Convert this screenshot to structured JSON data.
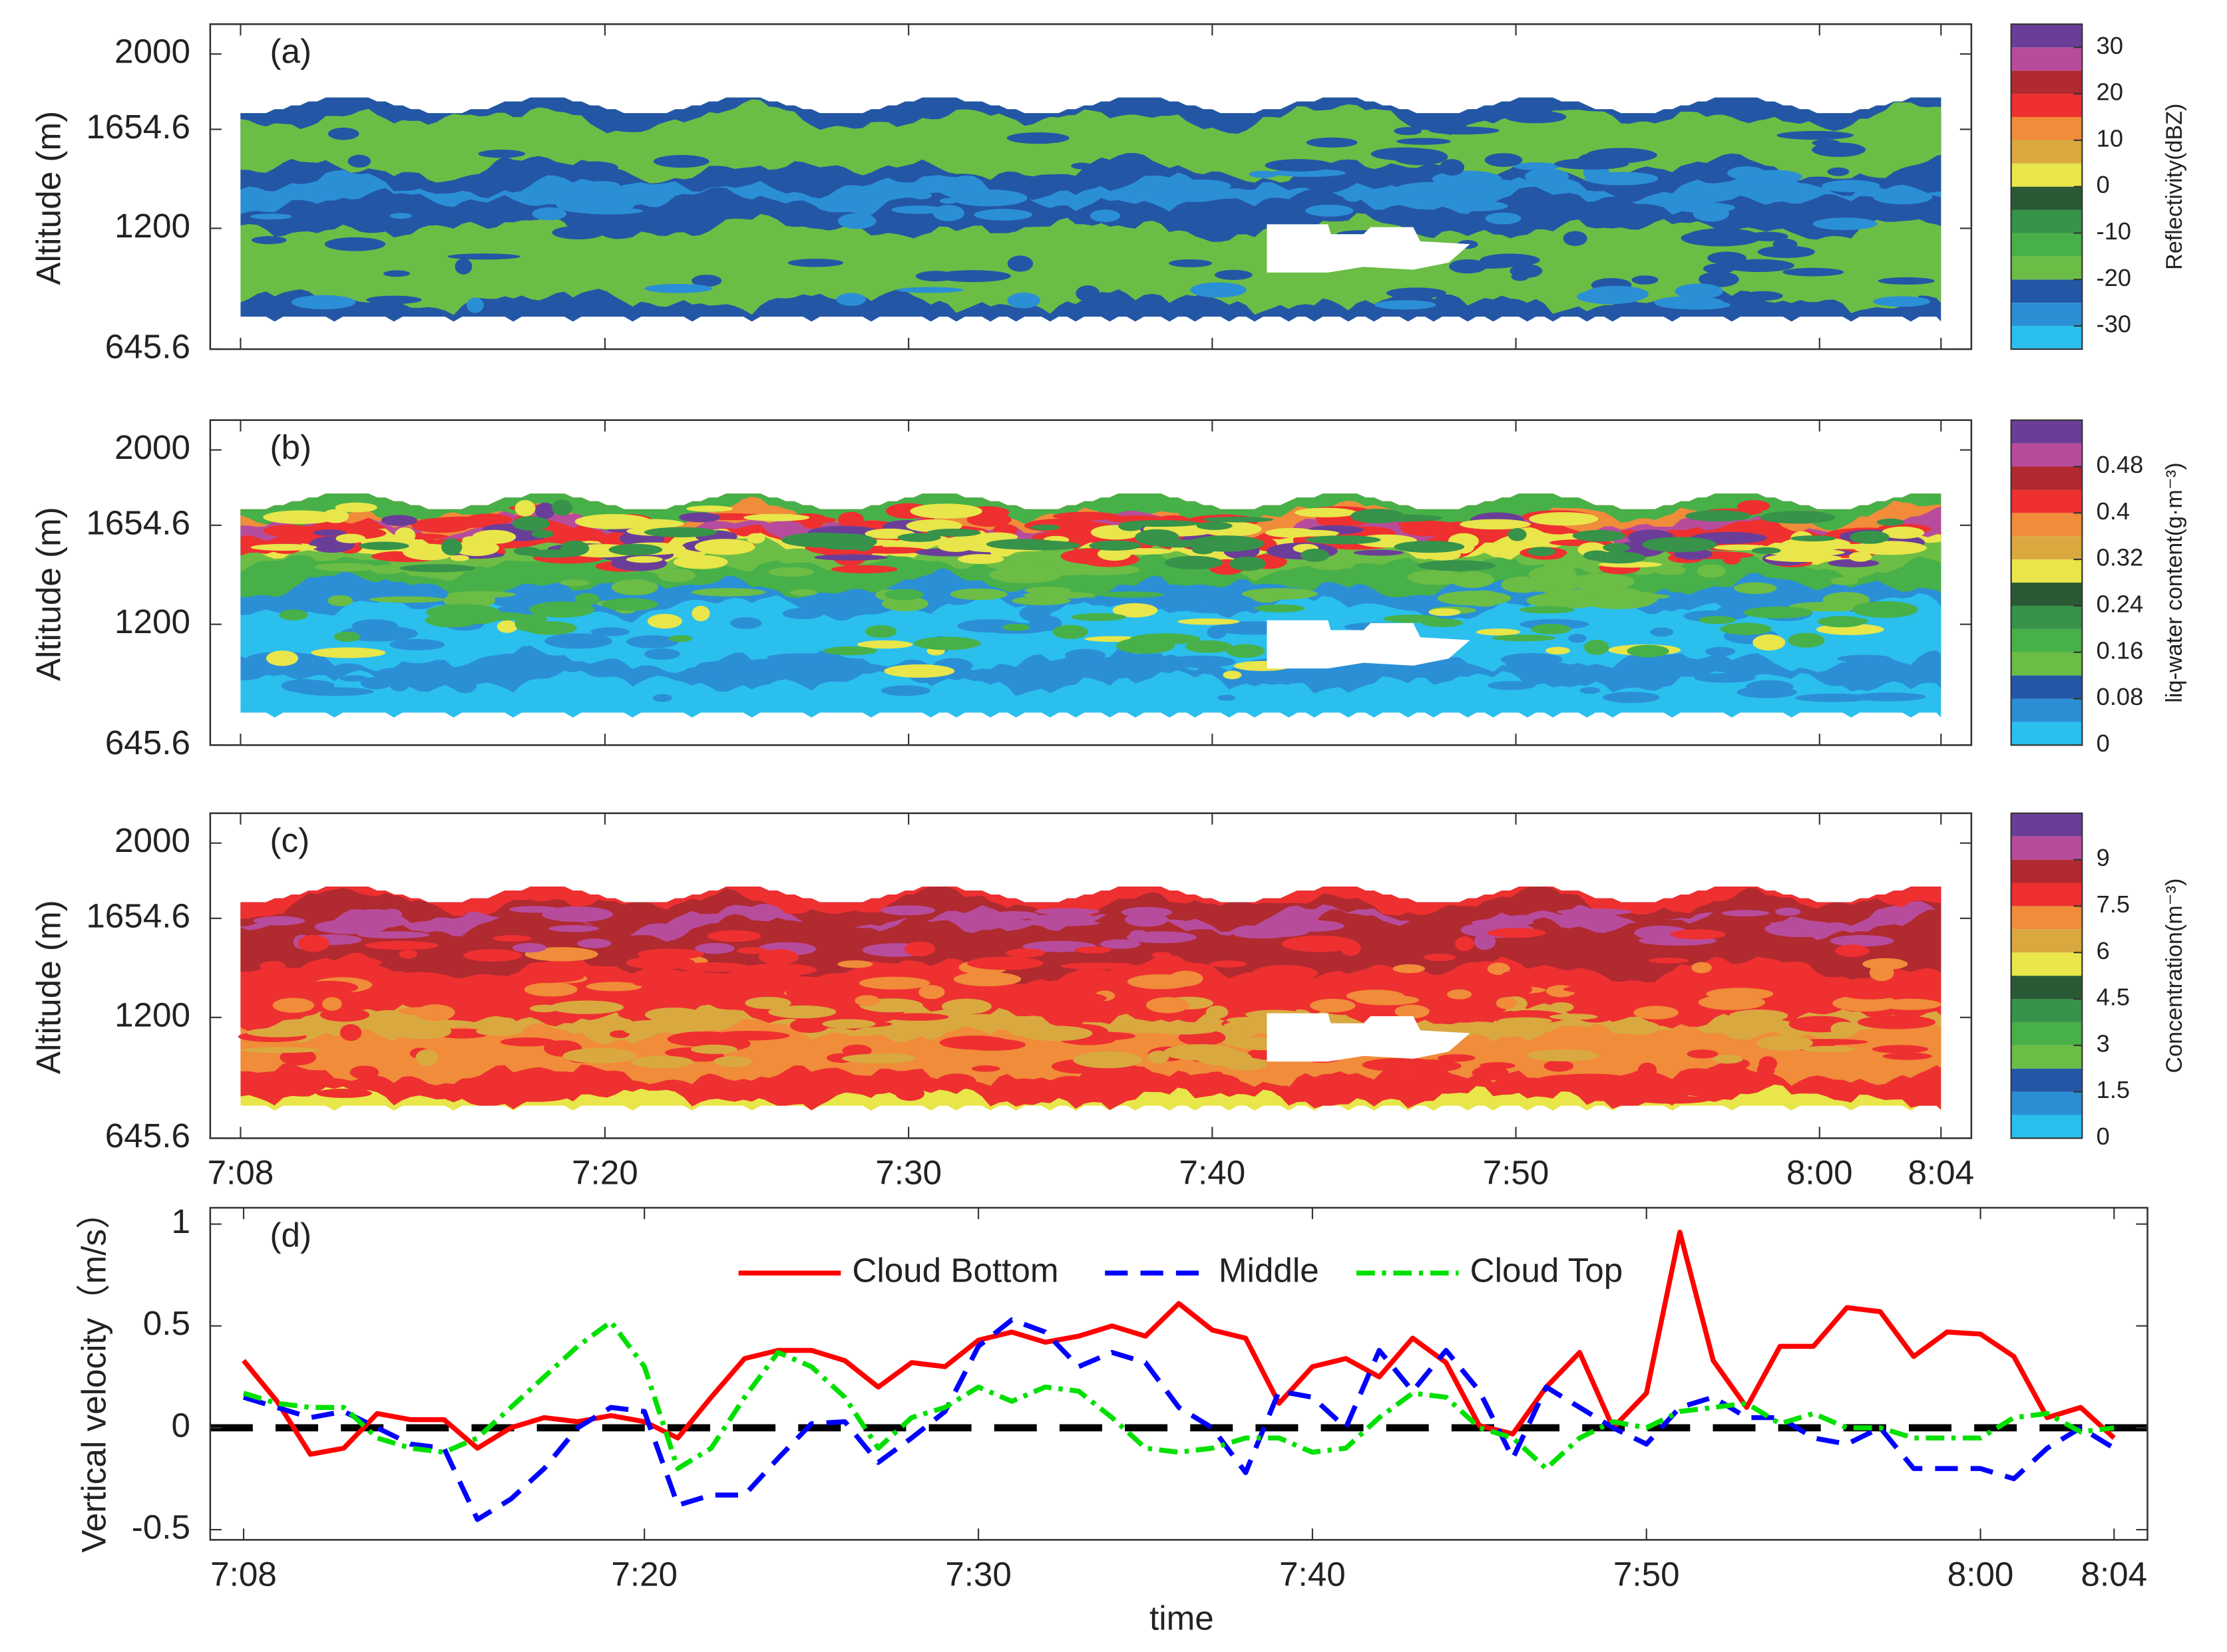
{
  "chart_data": [
    {
      "type": "contour",
      "label": "(a)",
      "ylabel": "Altitude (m)",
      "xlim": [
        "7:07",
        "8:05"
      ],
      "xticks": [
        "7:08",
        "7:20",
        "7:30",
        "7:40",
        "7:50",
        "8:00",
        "8:04"
      ],
      "ylim": [
        645.6,
        2137
      ],
      "yticks": [
        645.6,
        1200,
        1654.6,
        2000
      ],
      "colorbar": {
        "label": "Reflectivity(dBZ)",
        "levels": [
          -35,
          -30,
          -25,
          -20,
          -15,
          -10,
          -5,
          0,
          5,
          10,
          15,
          20,
          25,
          30,
          35
        ],
        "ticks": [
          -30,
          -20,
          -10,
          0,
          10,
          20,
          30
        ],
        "colors": [
          "#2bbfee",
          "#2b8fd6",
          "#2456a6",
          "#6cbd45",
          "#48b048",
          "#37924a",
          "#2a5a35",
          "#e8e64a",
          "#d9a940",
          "#f08c3a",
          "#ee3030",
          "#b02a30",
          "#b84c9c",
          "#6a3e98"
        ]
      }
    },
    {
      "type": "contour",
      "label": "(b)",
      "ylabel": "Altitude (m)",
      "xlim": [
        "7:07",
        "8:05"
      ],
      "xticks": [
        "7:08",
        "7:20",
        "7:30",
        "7:40",
        "7:50",
        "8:00",
        "8:04"
      ],
      "ylim": [
        645.6,
        2137
      ],
      "yticks": [
        645.6,
        1200,
        1654.6,
        2000
      ],
      "colorbar": {
        "label": "liq-water content(g·m⁻³)",
        "levels": [
          0,
          0.04,
          0.08,
          0.12,
          0.16,
          0.2,
          0.24,
          0.28,
          0.32,
          0.36,
          0.4,
          0.44,
          0.48,
          0.52,
          0.56
        ],
        "ticks": [
          0,
          0.08,
          0.16,
          0.24,
          0.32,
          0.4,
          0.48
        ],
        "colors": [
          "#2bbfee",
          "#2b8fd6",
          "#2456a6",
          "#6cbd45",
          "#48b048",
          "#37924a",
          "#2a5a35",
          "#e8e64a",
          "#d9a940",
          "#f08c3a",
          "#ee3030",
          "#b02a30",
          "#b84c9c",
          "#6a3e98"
        ]
      }
    },
    {
      "type": "contour",
      "label": "(c)",
      "ylabel": "Altitude (m)",
      "xlim": [
        "7:07",
        "8:05"
      ],
      "xticks": [
        "7:08",
        "7:20",
        "7:30",
        "7:40",
        "7:50",
        "8:00",
        "8:04"
      ],
      "ylim": [
        645.6,
        2137
      ],
      "yticks": [
        645.6,
        1200,
        1654.6,
        2000
      ],
      "colorbar": {
        "label": "Concentration(m⁻³)",
        "levels": [
          0,
          0.75,
          1.5,
          2.25,
          3,
          3.75,
          4.5,
          5.25,
          6,
          6.75,
          7.5,
          8.25,
          9,
          9.75,
          10.5
        ],
        "ticks": [
          0,
          1.5,
          3,
          4.5,
          6,
          7.5,
          9
        ],
        "colors": [
          "#2bbfee",
          "#2b8fd6",
          "#2456a6",
          "#6cbd45",
          "#48b048",
          "#37924a",
          "#2a5a35",
          "#e8e64a",
          "#d9a940",
          "#f08c3a",
          "#ee3030",
          "#b02a30",
          "#b84c9c",
          "#6a3e98"
        ]
      }
    },
    {
      "type": "line",
      "label": "(d)",
      "ylabel": "Vertical velocity（m/s）",
      "xlabel": "time",
      "xlim": [
        "7:07",
        "8:05"
      ],
      "xticks": [
        "7:08",
        "7:20",
        "7:30",
        "7:40",
        "7:50",
        "8:00",
        "8:04"
      ],
      "ylim": [
        -0.55,
        1.08
      ],
      "yticks": [
        -0.5,
        0,
        0.5,
        1
      ],
      "hline": 0,
      "legend": "upper center",
      "x": [
        "7:08",
        "7:09",
        "7:10",
        "7:11",
        "7:12",
        "7:13",
        "7:14",
        "7:15",
        "7:16",
        "7:17",
        "7:18",
        "7:19",
        "7:20",
        "7:21",
        "7:22",
        "7:23",
        "7:24",
        "7:25",
        "7:26",
        "7:27",
        "7:28",
        "7:29",
        "7:30",
        "7:31",
        "7:32",
        "7:33",
        "7:34",
        "7:35",
        "7:36",
        "7:37",
        "7:38",
        "7:39",
        "7:40",
        "7:41",
        "7:42",
        "7:43",
        "7:44",
        "7:45",
        "7:46",
        "7:47",
        "7:48",
        "7:49",
        "7:50",
        "7:51",
        "7:52",
        "7:53",
        "7:54",
        "7:55",
        "7:56",
        "7:57",
        "7:58",
        "7:59",
        "8:00",
        "8:01",
        "8:02",
        "8:03",
        "8:04"
      ],
      "series": [
        {
          "name": "Cloud Bottom",
          "color": "#ff0000",
          "dash": "solid",
          "values": [
            0.33,
            0.13,
            -0.13,
            -0.1,
            0.07,
            0.04,
            0.04,
            -0.1,
            0.0,
            0.05,
            0.03,
            0.06,
            0.03,
            -0.05,
            0.15,
            0.34,
            0.38,
            0.38,
            0.33,
            0.2,
            0.32,
            0.3,
            0.43,
            0.47,
            0.42,
            0.45,
            0.5,
            0.45,
            0.61,
            0.48,
            0.44,
            0.12,
            0.3,
            0.34,
            0.25,
            0.44,
            0.32,
            0.01,
            -0.03,
            0.2,
            0.37,
            0.0,
            0.17,
            0.96,
            0.33,
            0.1,
            0.4,
            0.4,
            0.59,
            0.57,
            0.35,
            0.47,
            0.46,
            0.35,
            0.05,
            0.1,
            -0.05
          ]
        },
        {
          "name": "Middle",
          "color": "#0000ff",
          "dash": "dash",
          "values": [
            0.15,
            0.1,
            0.05,
            0.08,
            0.0,
            -0.08,
            -0.1,
            -0.45,
            -0.35,
            -0.2,
            0.0,
            0.1,
            0.08,
            -0.38,
            -0.33,
            -0.33,
            -0.15,
            0.02,
            0.03,
            -0.17,
            -0.05,
            0.08,
            0.4,
            0.53,
            0.47,
            0.3,
            0.37,
            0.32,
            0.1,
            0.0,
            -0.22,
            0.18,
            0.15,
            0.0,
            0.38,
            0.18,
            0.38,
            0.18,
            -0.15,
            0.2,
            0.1,
            0.0,
            -0.08,
            0.1,
            0.15,
            0.05,
            0.05,
            -0.05,
            -0.08,
            0.0,
            -0.2,
            -0.2,
            -0.2,
            -0.25,
            -0.1,
            0.0,
            -0.1
          ]
        },
        {
          "name": "Cloud Top",
          "color": "#00e000",
          "dash": "dashdot",
          "values": [
            0.17,
            0.12,
            0.1,
            0.1,
            -0.05,
            -0.1,
            -0.12,
            -0.05,
            0.1,
            0.25,
            0.4,
            0.52,
            0.3,
            -0.2,
            -0.1,
            0.15,
            0.37,
            0.3,
            0.15,
            -0.1,
            0.05,
            0.1,
            0.2,
            0.13,
            0.2,
            0.18,
            0.05,
            -0.1,
            -0.12,
            -0.1,
            -0.05,
            -0.05,
            -0.12,
            -0.1,
            0.05,
            0.17,
            0.15,
            0.0,
            -0.05,
            -0.2,
            -0.05,
            0.03,
            0.0,
            0.08,
            0.1,
            0.12,
            0.02,
            0.07,
            0.0,
            0.0,
            -0.05,
            -0.05,
            -0.05,
            0.05,
            0.07,
            -0.02,
            0.0
          ]
        }
      ]
    }
  ]
}
